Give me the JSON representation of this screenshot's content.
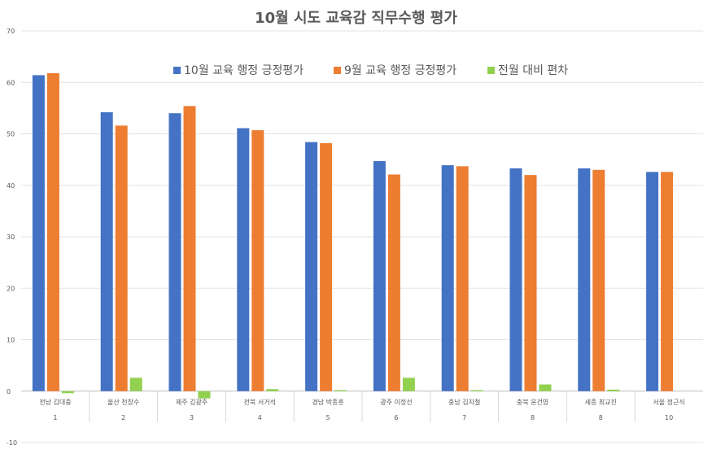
{
  "chart_data": {
    "type": "bar",
    "title": "10월 시도 교육감 직무수행 평가",
    "categories": [
      "전남 김대중",
      "울산 천창수",
      "제주 김광주",
      "전북 서거석",
      "경남 박종훈",
      "광주 이정선",
      "충남 김지철",
      "충북 윤건영",
      "세종 최교진",
      "서울 정근식"
    ],
    "ranks": [
      "1",
      "2",
      "3",
      "4",
      "5",
      "6",
      "7",
      "8",
      "8",
      "10"
    ],
    "series": [
      {
        "name": "10월 교육 행정 긍정평가",
        "color": "#4472C4",
        "values": [
          61.4,
          54.2,
          54.0,
          51.1,
          48.4,
          44.7,
          43.9,
          43.3,
          43.3,
          42.6
        ]
      },
      {
        "name": "9월 교육 행정 긍정평가",
        "color": "#ED7D31",
        "values": [
          61.8,
          51.6,
          55.4,
          50.7,
          48.2,
          42.1,
          43.7,
          42.0,
          43.0,
          42.6
        ]
      },
      {
        "name": "전월 대비 편차",
        "color": "#92D050",
        "values": [
          -0.4,
          2.6,
          -1.4,
          0.4,
          0.2,
          2.6,
          0.2,
          1.3,
          0.3,
          0.0
        ]
      }
    ],
    "ylim": [
      -10,
      70
    ],
    "yticks": [
      "-10",
      "0",
      "10",
      "20",
      "30",
      "40",
      "50",
      "60",
      "70"
    ],
    "grid": true,
    "legend": "top-center"
  }
}
